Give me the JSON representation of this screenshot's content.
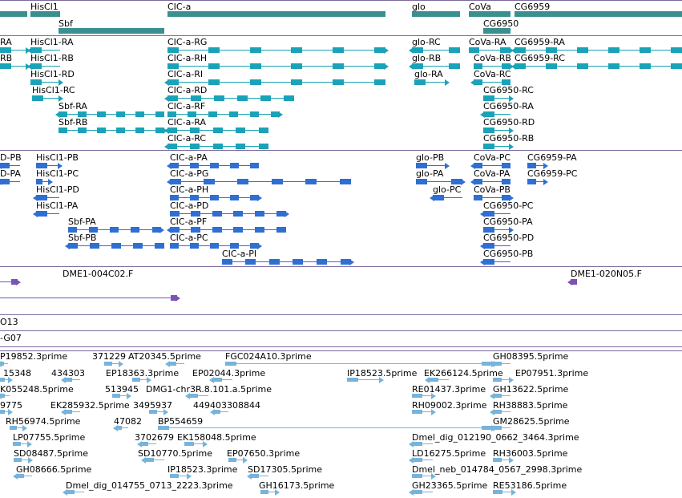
{
  "colors": {
    "gene": "#3a8f8f",
    "transcript": "#1aa3b8",
    "protein": "#2f6fd3",
    "clone": "#7a52b8",
    "est": "#78b3da",
    "separator": "#7b6a9e",
    "background": "#ffffff"
  },
  "gene_labels": [
    "HisCl1",
    "CIC-a",
    "glo",
    "CoVa",
    "CG6959",
    "Sbf",
    "CG6950"
  ],
  "transcript_labels": [
    "RA",
    "HisCl1-RA",
    "CIC-a-RG",
    "glo-RC",
    "CoVa-RA",
    "CG6959-RA",
    "RB",
    "HisCl1-RB",
    "CIC-a-RH",
    "glo-RB",
    "CoVa-RB",
    "CG6959-RC",
    "HisCl1-RD",
    "CIC-a-RI",
    "glo-RA",
    "CoVa-RC",
    "HisCl1-RC",
    "CIC-a-RD",
    "CG6950-RC",
    "Sbf-RA",
    "CIC-a-RF",
    "CG6950-RA",
    "Sbf-RB",
    "CIC-a-RA",
    "CG6950-RD",
    "CIC-a-RC",
    "CG6950-RB"
  ],
  "protein_labels": [
    "D-PB",
    "HisCl1-PB",
    "CIC-a-PA",
    "glo-PB",
    "CoVa-PC",
    "CG6959-PA",
    "D-PA",
    "HisCl1-PC",
    "CIC-a-PG",
    "glo-PA",
    "CoVa-PA",
    "CG6959-PC",
    "HisCl1-PD",
    "CIC-a-PH",
    "glo-PC",
    "CoVa-PB",
    "HisCl1-PA",
    "CIC-a-PD",
    "CG6950-PC",
    "Sbf-PA",
    "CIC-a-PF",
    "CG6950-PA",
    "Sbf-PB",
    "CIC-a-PC",
    "CG6950-PD",
    "CIC-a-PI",
    "CG6950-PB"
  ],
  "clone_labels": [
    "DME1-004C02.F",
    "DME1-020N05.F",
    "O13",
    "-G07"
  ],
  "est_labels": [
    "P19852.3prime",
    "371229",
    "AT20345.5prime",
    "FGC024A10.3prime",
    "GH08395.5prime",
    "15348",
    "434303",
    "EP18363.3prime",
    "EP02044.3prime",
    "IP18523.5prime",
    "EK266124.5prime",
    "EP07951.3prime",
    "K055248.5prime",
    "513945",
    "DMG1-chr3R.8.101.a.5prime",
    "RE01437.3prime",
    "GH13622.5prime",
    "9775",
    "EK285932.5prime",
    "3495937",
    "449403308844",
    "RH09002.3prime",
    "RH38883.5prime",
    "RH56974.5prime",
    "47082",
    "BP554659",
    "GM28625.5prime",
    "LP07755.5prime",
    "3702679",
    "EK158048.5prime",
    "Dmel_dig_012190_0662_3464.3prime",
    "SD08487.5prime",
    "SD10770.5prime",
    "EP07650.3prime",
    "LD16275.5prime",
    "RH36003.5prime",
    "GH08666.5prime",
    "IP18523.3prime",
    "SD17305.5prime",
    "Dmel_neb_014784_0567_2998.3prime",
    "Dmel_dig_014755_0713_2223.3prime",
    "GH16173.5prime",
    "GH23365.5prime",
    "RE53186.5prime"
  ]
}
